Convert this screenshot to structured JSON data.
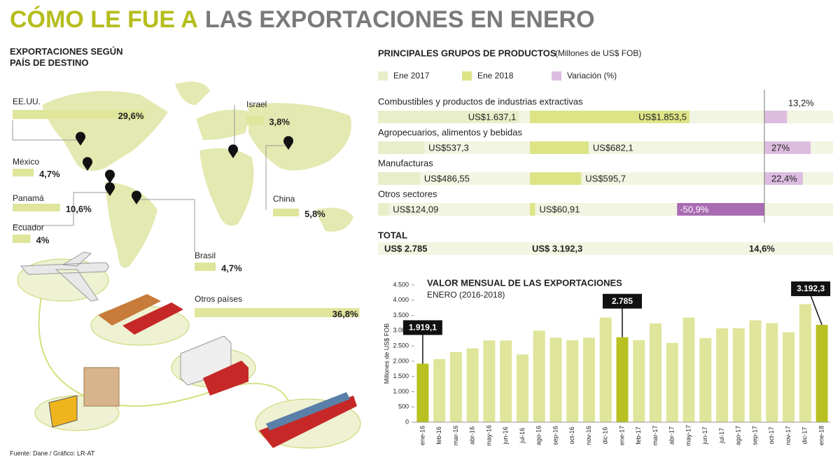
{
  "header": {
    "title_highlight": "CÓMO LE FUE A",
    "title_rest": "LAS EXPORTACIONES EN ENERO"
  },
  "source": "Fuente: Dane / Gráfico: LR-AT",
  "chart_data": [
    {
      "type": "bar",
      "orientation": "horizontal",
      "title": "EXPORTACIONES SEGÚN PAÍS DE DESTINO",
      "categories": [
        "EE.UU.",
        "México",
        "Panamá",
        "Ecuador",
        "Israel",
        "China",
        "Brasil",
        "Otros países"
      ],
      "values": [
        29.6,
        4.7,
        10.6,
        4,
        3.8,
        5.8,
        4.7,
        36.8
      ],
      "value_labels": [
        "29,6%",
        "4,7%",
        "10,6%",
        "4%",
        "3,8%",
        "5,8%",
        "4,7%",
        "36,8%"
      ],
      "color": "#dfe59a"
    },
    {
      "type": "bar",
      "orientation": "horizontal",
      "title": "PRINCIPALES GRUPOS DE PRODUCTOS",
      "subtitle": "(Millones de US$ FOB)",
      "categories": [
        "Combustibles y productos de industrias extractivas",
        "Agropecuarios, alimentos y bebidas",
        "Manufacturas",
        "Otros sectores"
      ],
      "series": [
        {
          "name": "Ene 2017",
          "color": "#e8eec9",
          "values": [
            1637.1,
            537.3,
            486.55,
            124.09
          ],
          "value_labels": [
            "US$1.637,1",
            "US$537,3",
            "US$486,55",
            "US$124,09"
          ]
        },
        {
          "name": "Ene 2018",
          "color": "#dce486",
          "values": [
            1853.5,
            682.1,
            595.7,
            60.91
          ],
          "value_labels": [
            "US$1.853,5",
            "US$682,1",
            "US$595,7",
            "US$60,91"
          ]
        },
        {
          "name": "Variación (%)",
          "color": "#dcbde0",
          "negative_color": "#a96bb2",
          "values": [
            13.2,
            27,
            22.4,
            -50.9
          ],
          "value_labels": [
            "13,2%",
            "27%",
            "22,4%",
            "-50,9%"
          ]
        }
      ],
      "total": {
        "label": "TOTAL",
        "values": [
          2785,
          3192.3,
          14.6
        ],
        "value_labels": [
          "US$ 2.785",
          "US$ 3.192,3",
          "14,6%"
        ]
      }
    },
    {
      "type": "bar",
      "title": "VALOR MENSUAL DE LAS EXPORTACIONES",
      "subtitle": "ENERO (2016-2018)",
      "y_label": "Millones de US$ FOB",
      "categories": [
        "ene-16",
        "feb-16",
        "mar-16",
        "abr-16",
        "may-16",
        "jun-16",
        "jul-16",
        "ago-16",
        "sep-16",
        "oct-16",
        "nov-16",
        "dic-16",
        "ene-17",
        "feb-17",
        "mar-17",
        "abr-17",
        "may-17",
        "jun-17",
        "jul-17",
        "ago-17",
        "sep-17",
        "oct-17",
        "nov-17",
        "dic-17",
        "ene-18"
      ],
      "values": [
        1919.1,
        2070,
        2300,
        2420,
        2680,
        2680,
        2220,
        3000,
        2770,
        2690,
        2770,
        3430,
        2785,
        2690,
        3240,
        2600,
        3430,
        2760,
        3080,
        3080,
        3340,
        3250,
        2950,
        3870,
        3192.3
      ],
      "value_labels": [
        "1.919,1",
        null,
        null,
        null,
        null,
        null,
        null,
        null,
        null,
        null,
        null,
        null,
        "2.785",
        null,
        null,
        null,
        null,
        null,
        null,
        null,
        null,
        null,
        null,
        null,
        "3.192,3"
      ],
      "color": "#dfe59a",
      "highlight_color": "#b8c121",
      "ylim": [
        0,
        4500
      ],
      "yticks": [
        0,
        500,
        {
          "value": 1000,
          "label": "1.000"
        },
        {
          "value": 1500,
          "label": "1.500"
        },
        {
          "value": 2000,
          "label": "2.000"
        },
        {
          "value": 2500,
          "label": "2.500"
        },
        {
          "value": 3000,
          "label": "3.000"
        },
        {
          "value": 3500,
          "label": "3.500"
        },
        {
          "value": 4000,
          "label": "4.000"
        },
        {
          "value": 4500,
          "label": "4.500"
        }
      ]
    }
  ]
}
